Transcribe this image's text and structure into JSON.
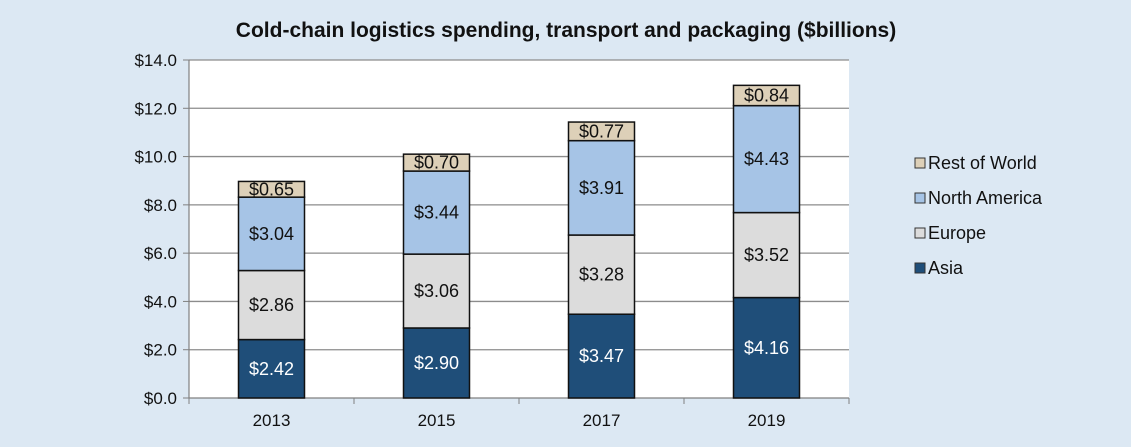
{
  "chart_data": {
    "type": "bar",
    "stacked": true,
    "title": "Cold-chain logistics spending, transport and packaging ($billions)",
    "xlabel": "",
    "ylabel": "",
    "categories": [
      "2013",
      "2015",
      "2017",
      "2019"
    ],
    "ylim": [
      0,
      14
    ],
    "yticks": [
      0,
      2,
      4,
      6,
      8,
      10,
      12,
      14
    ],
    "ytick_labels": [
      "$0.0",
      "$2.0",
      "$4.0",
      "$6.0",
      "$8.0",
      "$10.0",
      "$12.0",
      "$14.0"
    ],
    "grid": true,
    "legend_position": "right",
    "series": [
      {
        "name": "Asia",
        "values": [
          2.42,
          2.9,
          3.47,
          4.16
        ],
        "labels": [
          "$2.42",
          "$2.90",
          "$3.47",
          "$4.16"
        ],
        "color": "#1f4e79",
        "label_color": "#ffffff"
      },
      {
        "name": "Europe",
        "values": [
          2.86,
          3.06,
          3.28,
          3.52
        ],
        "labels": [
          "$2.86",
          "$3.06",
          "$3.28",
          "$3.52"
        ],
        "color": "#dcdcdc",
        "label_color": "#111111"
      },
      {
        "name": "North America",
        "values": [
          3.04,
          3.44,
          3.91,
          4.43
        ],
        "labels": [
          "$3.04",
          "$3.44",
          "$3.91",
          "$4.43"
        ],
        "color": "#a6c4e6",
        "label_color": "#111111"
      },
      {
        "name": "Rest of World",
        "values": [
          0.65,
          0.7,
          0.77,
          0.84
        ],
        "labels": [
          "$0.65",
          "$0.70",
          "$0.77",
          "$0.84"
        ],
        "color": "#ddd0b8",
        "label_color": "#111111"
      }
    ],
    "legend_order": [
      "Rest of World",
      "North America",
      "Europe",
      "Asia"
    ]
  }
}
